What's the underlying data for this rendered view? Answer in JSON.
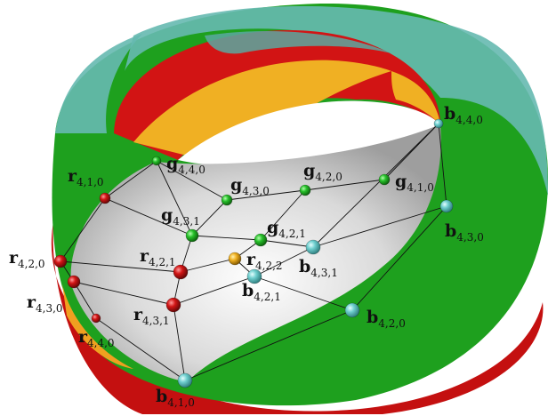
{
  "colors": {
    "green": "#1aa31a",
    "teal": "#5fb8b0",
    "red": "#d01010",
    "gold": "#f0b020",
    "grey": "#bdbdbd",
    "edge": "#111111"
  },
  "nodes": [
    {
      "id": "g440",
      "base": "g",
      "sub": "4,4,0",
      "color": "green"
    },
    {
      "id": "g430",
      "base": "g",
      "sub": "4,3,0",
      "color": "green"
    },
    {
      "id": "g420",
      "base": "g",
      "sub": "4,2,0",
      "color": "green"
    },
    {
      "id": "g410",
      "base": "g",
      "sub": "4,1,0",
      "color": "green"
    },
    {
      "id": "g431",
      "base": "g",
      "sub": "4,3,1",
      "color": "green"
    },
    {
      "id": "g421",
      "base": "g",
      "sub": "4,2,1",
      "color": "green"
    },
    {
      "id": "r410",
      "base": "r",
      "sub": "4,1,0",
      "color": "red"
    },
    {
      "id": "r420",
      "base": "r",
      "sub": "4,2,0",
      "color": "red"
    },
    {
      "id": "r430",
      "base": "r",
      "sub": "4,3,0",
      "color": "red"
    },
    {
      "id": "r440",
      "base": "r",
      "sub": "4,4,0",
      "color": "red"
    },
    {
      "id": "r421",
      "base": "r",
      "sub": "4,2,1",
      "color": "red"
    },
    {
      "id": "r431",
      "base": "r",
      "sub": "4,3,1",
      "color": "red"
    },
    {
      "id": "r422",
      "base": "r",
      "sub": "4,2,2",
      "color": "gold"
    },
    {
      "id": "b440",
      "base": "b",
      "sub": "4,4,0",
      "color": "teal"
    },
    {
      "id": "b430",
      "base": "b",
      "sub": "4,3,0",
      "color": "teal"
    },
    {
      "id": "b420",
      "base": "b",
      "sub": "4,2,0",
      "color": "teal"
    },
    {
      "id": "b410",
      "base": "b",
      "sub": "4,1,0",
      "color": "teal"
    },
    {
      "id": "b431",
      "base": "b",
      "sub": "4,3,1",
      "color": "teal"
    },
    {
      "id": "b421",
      "base": "b",
      "sub": "4,2,1",
      "color": "teal"
    }
  ],
  "edges": [
    [
      "g440",
      "g430"
    ],
    [
      "g430",
      "g420"
    ],
    [
      "g420",
      "g410"
    ],
    [
      "g410",
      "b440"
    ],
    [
      "g440",
      "r410"
    ],
    [
      "g440",
      "g431"
    ],
    [
      "g430",
      "g431"
    ],
    [
      "g420",
      "g421"
    ],
    [
      "g431",
      "g421"
    ],
    [
      "g431",
      "r421"
    ],
    [
      "g431",
      "r410"
    ],
    [
      "r410",
      "r420"
    ],
    [
      "r420",
      "r430"
    ],
    [
      "r430",
      "r440"
    ],
    [
      "r420",
      "r421"
    ],
    [
      "r421",
      "r431"
    ],
    [
      "r430",
      "r431"
    ],
    [
      "r421",
      "r422"
    ],
    [
      "r440",
      "b410"
    ],
    [
      "r431",
      "b410"
    ],
    [
      "g421",
      "r422"
    ],
    [
      "g421",
      "b431"
    ],
    [
      "r422",
      "b421"
    ],
    [
      "b421",
      "b431"
    ],
    [
      "b421",
      "b420"
    ],
    [
      "r431",
      "b421"
    ],
    [
      "b431",
      "b430"
    ],
    [
      "b431",
      "b440"
    ],
    [
      "b440",
      "b430"
    ],
    [
      "b430",
      "b420"
    ],
    [
      "b420",
      "b410"
    ]
  ]
}
